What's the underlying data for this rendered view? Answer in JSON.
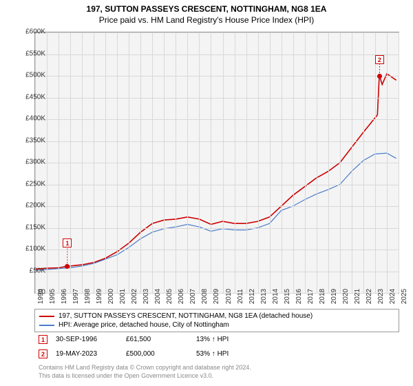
{
  "title1": "197, SUTTON PASSEYS CRESCENT, NOTTINGHAM, NG8 1EA",
  "title2": "Price paid vs. HM Land Registry's House Price Index (HPI)",
  "chart": {
    "type": "line",
    "plot_bg": "#f4f4f4",
    "grid_color": "#d8d8d8",
    "x": {
      "min": 1994,
      "max": 2025,
      "step": 1
    },
    "y": {
      "min": 0,
      "max": 600000,
      "step": 50000,
      "prefix": "£",
      "suffix": "K",
      "divisor": 1000
    },
    "series": [
      {
        "name": "197, SUTTON PASSEYS CRESCENT, NOTTINGHAM, NG8 1EA (detached house)",
        "color": "#cc0000",
        "width": 1.6,
        "points": [
          [
            1994,
            55
          ],
          [
            1995,
            57
          ],
          [
            1996,
            58
          ],
          [
            1996.75,
            61.5
          ],
          [
            1997,
            62
          ],
          [
            1998,
            65
          ],
          [
            1999,
            70
          ],
          [
            2000,
            80
          ],
          [
            2001,
            95
          ],
          [
            2002,
            115
          ],
          [
            2003,
            140
          ],
          [
            2004,
            160
          ],
          [
            2005,
            168
          ],
          [
            2006,
            170
          ],
          [
            2007,
            175
          ],
          [
            2008,
            170
          ],
          [
            2009,
            158
          ],
          [
            2010,
            165
          ],
          [
            2011,
            160
          ],
          [
            2012,
            160
          ],
          [
            2013,
            165
          ],
          [
            2014,
            175
          ],
          [
            2015,
            200
          ],
          [
            2016,
            225
          ],
          [
            2017,
            245
          ],
          [
            2018,
            265
          ],
          [
            2019,
            280
          ],
          [
            2020,
            300
          ],
          [
            2021,
            335
          ],
          [
            2022,
            370
          ],
          [
            2022.9,
            400
          ],
          [
            2023.2,
            410
          ],
          [
            2023.35,
            495
          ],
          [
            2023.38,
            500
          ],
          [
            2023.6,
            480
          ],
          [
            2024,
            505
          ],
          [
            2024.8,
            490
          ]
        ]
      },
      {
        "name": "HPI: Average price, detached house, City of Nottingham",
        "color": "#4a7cc9",
        "width": 1.2,
        "points": [
          [
            1994,
            52
          ],
          [
            1995,
            54
          ],
          [
            1996,
            56
          ],
          [
            1997,
            58
          ],
          [
            1998,
            62
          ],
          [
            1999,
            68
          ],
          [
            2000,
            78
          ],
          [
            2001,
            88
          ],
          [
            2002,
            105
          ],
          [
            2003,
            125
          ],
          [
            2004,
            140
          ],
          [
            2005,
            148
          ],
          [
            2006,
            152
          ],
          [
            2007,
            158
          ],
          [
            2008,
            152
          ],
          [
            2009,
            142
          ],
          [
            2010,
            148
          ],
          [
            2011,
            145
          ],
          [
            2012,
            145
          ],
          [
            2013,
            150
          ],
          [
            2014,
            160
          ],
          [
            2015,
            190
          ],
          [
            2016,
            200
          ],
          [
            2017,
            215
          ],
          [
            2018,
            228
          ],
          [
            2019,
            238
          ],
          [
            2020,
            250
          ],
          [
            2021,
            280
          ],
          [
            2022,
            305
          ],
          [
            2023,
            320
          ],
          [
            2024,
            322
          ],
          [
            2024.8,
            310
          ]
        ]
      }
    ],
    "markers": [
      {
        "n": "1",
        "year": 1996.75,
        "value": 61500,
        "box_offset_y": -40,
        "date": "30-SEP-1996",
        "price": "£61,500",
        "delta": "13% ↑ HPI"
      },
      {
        "n": "2",
        "year": 2023.38,
        "value": 500000,
        "box_offset_y": -30,
        "date": "19-MAY-2023",
        "price": "£500,000",
        "delta": "53% ↑ HPI"
      }
    ]
  },
  "legend": {
    "s1": "197, SUTTON PASSEYS CRESCENT, NOTTINGHAM, NG8 1EA (detached house)",
    "s2": "HPI: Average price, detached house, City of Nottingham"
  },
  "footer": {
    "l1": "Contains HM Land Registry data © Crown copyright and database right 2024.",
    "l2": "This data is licensed under the Open Government Licence v3.0."
  }
}
